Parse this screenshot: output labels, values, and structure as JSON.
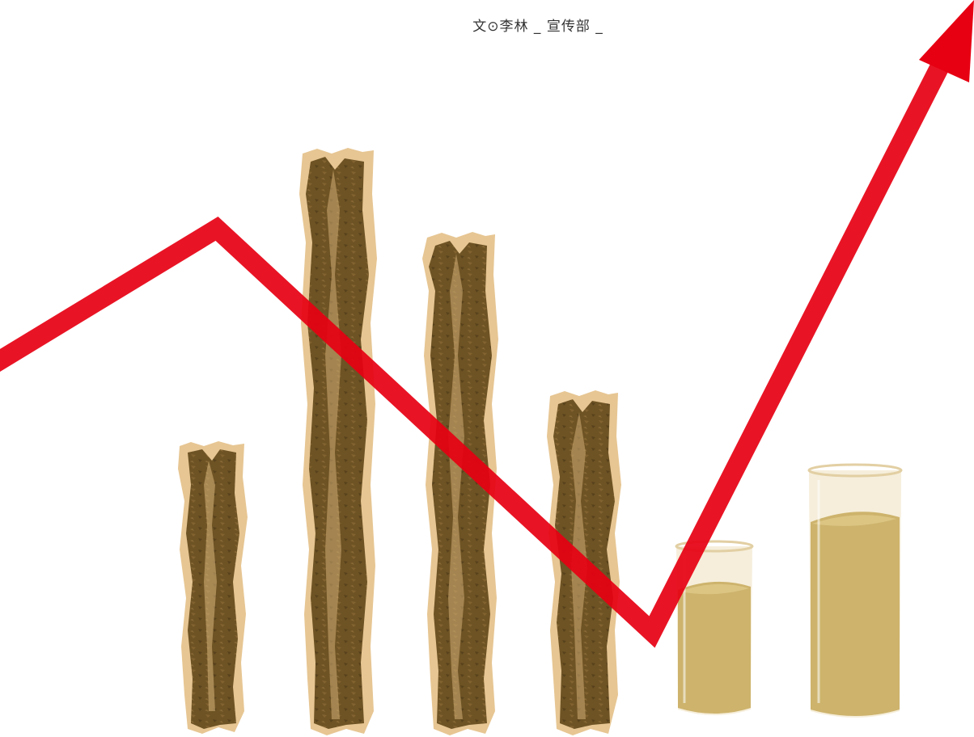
{
  "article": {
    "byline": "文⊙李林 _ 宣传部 _"
  },
  "illustration": {
    "stick_bars": [
      "licorice-stick-1",
      "licorice-stick-2",
      "licorice-stick-3",
      "licorice-stick-4"
    ],
    "glass_bars": [
      "juice-glass-1",
      "juice-glass-2"
    ],
    "colors": {
      "arrow": "#e60012",
      "stick_outer": "#e7c693",
      "stick_inner": "#6e5324",
      "glass_rim": "#efe0c0",
      "juice": "#cdb36c",
      "juice_top": "#dcc583"
    }
  }
}
